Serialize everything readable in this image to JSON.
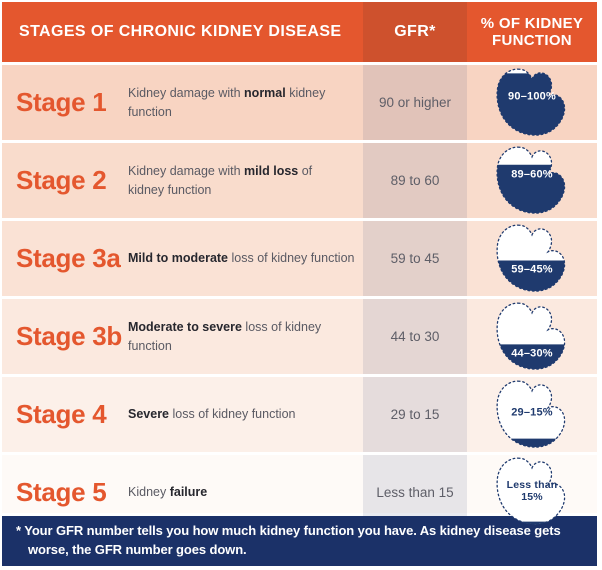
{
  "colors": {
    "orange": "#E4572E",
    "gfr_header_orange": "#CE512D",
    "navy": "#1B3168",
    "icon_navy": "#1F3A6E",
    "row_backgrounds": [
      "#F8D4C2",
      "#F9DCCC",
      "#FAE2D5",
      "#FBE9DF",
      "#FCF0E9",
      "#FEFAF7"
    ]
  },
  "header": {
    "stages": "STAGES OF CHRONIC KIDNEY DISEASE",
    "gfr": "GFR*",
    "percent_function": "% OF KIDNEY FUNCTION"
  },
  "table": {
    "rows": [
      {
        "stage": "Stage 1",
        "description": [
          {
            "t": "Kidney damage with "
          },
          {
            "t": "normal",
            "b": 1
          },
          {
            "t": " kidney function"
          }
        ],
        "gfr": "90 or higher",
        "kidney": {
          "label": "90–100%",
          "fill_pct": 90,
          "label_on_fill": true
        }
      },
      {
        "stage": "Stage 2",
        "description": [
          {
            "t": "Kidney damage with "
          },
          {
            "t": "mild loss",
            "b": 1
          },
          {
            "t": " of",
            "br": 1
          },
          {
            "t": "kidney function"
          }
        ],
        "gfr": "89 to 60",
        "kidney": {
          "label": "89–60%",
          "fill_pct": 72,
          "label_on_fill": true
        }
      },
      {
        "stage": "Stage 3a",
        "description": [
          {
            "t": "Mild to moderate",
            "b": 1
          },
          {
            "t": " loss of kidney function"
          }
        ],
        "gfr": "59 to 45",
        "kidney": {
          "label": "59–45%",
          "fill_pct": 48,
          "label_on_fill": true
        }
      },
      {
        "stage": "Stage 3b",
        "description": [
          {
            "t": "Moderate to severe",
            "b": 1
          },
          {
            "t": " loss of kidney function"
          }
        ],
        "gfr": "44 to 30",
        "kidney": {
          "label": "44–30%",
          "fill_pct": 40,
          "label_on_fill": true
        }
      },
      {
        "stage": "Stage 4",
        "description": [
          {
            "t": "Severe",
            "b": 1
          },
          {
            "t": " loss of kidney function"
          }
        ],
        "gfr": "29 to 15",
        "kidney": {
          "label": "29–15%",
          "fill_pct": 18,
          "label_on_fill": false
        }
      },
      {
        "stage": "Stage 5",
        "description": [
          {
            "t": "Kidney "
          },
          {
            "t": "failure",
            "b": 1
          }
        ],
        "gfr": "Less than 15",
        "kidney": {
          "label": "Less than 15%",
          "fill_pct": 10,
          "label_on_fill": false
        }
      }
    ]
  },
  "footnote": {
    "text": "* Your GFR number tells you how much kidney function you have. As kidney disease gets worse, the GFR number goes down."
  }
}
